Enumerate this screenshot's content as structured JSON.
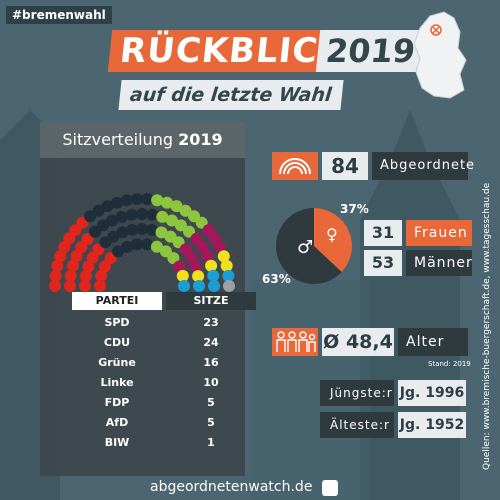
{
  "hashtag": "#bremenwahl",
  "header": {
    "title": "RÜCKBLICK",
    "year": "2019",
    "subtitle": "auf die letzte Wahl"
  },
  "panel": {
    "heading": "Sitzverteilung",
    "heading_year": "2019"
  },
  "table": {
    "col_party": "PARTEI",
    "col_seats": "SITZE",
    "rows": [
      {
        "party": "SPD",
        "seats": "23"
      },
      {
        "party": "CDU",
        "seats": "24"
      },
      {
        "party": "Grüne",
        "seats": "16"
      },
      {
        "party": "Linke",
        "seats": "10"
      },
      {
        "party": "FDP",
        "seats": "5"
      },
      {
        "party": "AfD",
        "seats": "5"
      },
      {
        "party": "BIW",
        "seats": "1"
      }
    ]
  },
  "party_colors": [
    "#e2251d",
    "#1f2f3a",
    "#8cc63e",
    "#a4185b",
    "#f2df1d",
    "#1b9ed6",
    "#9aa0a3"
  ],
  "stats": {
    "deputies": "84",
    "deputies_label": "Abgeordnete",
    "women_pct": "37%",
    "men_pct": "63%",
    "women": "31",
    "women_label": "Frauen",
    "men": "53",
    "men_label": "Männer",
    "avg_age": "Ø 48,4",
    "avg_age_label": "Alter",
    "stand": "Stand: 2019",
    "youngest_label": "Jüngste:r",
    "youngest_value": "Jg. 1996",
    "oldest_label": "Älteste:r",
    "oldest_value": "Jg. 1952"
  },
  "source": "Quellen: www.bremische-buergerschaft.de, www.tagesschau.de",
  "footer": "abgeordnetenwatch.de"
}
